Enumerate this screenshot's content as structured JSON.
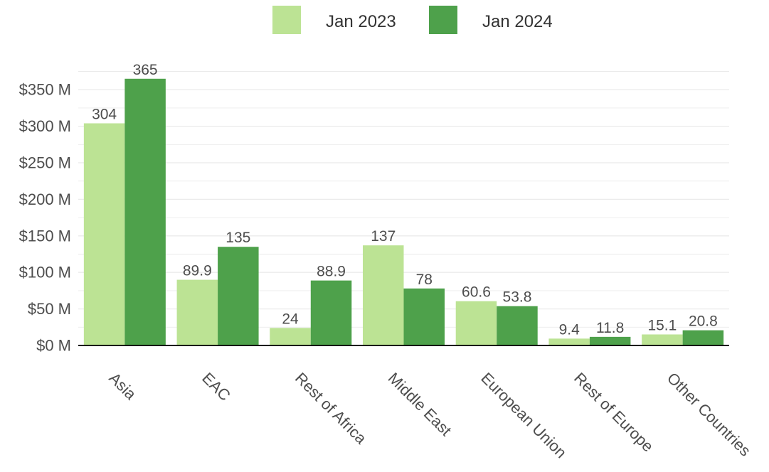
{
  "chart_data": {
    "type": "bar",
    "categories": [
      "Asia",
      "EAC",
      "Rest of Africa",
      "Middle East",
      "European Union",
      "Rest of Europe",
      "Other Countries"
    ],
    "series": [
      {
        "name": "Jan 2023",
        "values": [
          304,
          89.9,
          24,
          137,
          60.6,
          9.4,
          15.1
        ],
        "labels": [
          "304",
          "89.9",
          "24",
          "137",
          "60.6",
          "9.4",
          "15.1"
        ],
        "color": "#bce394"
      },
      {
        "name": "Jan 2024",
        "values": [
          365,
          135,
          88.9,
          78,
          53.8,
          11.8,
          20.8
        ],
        "labels": [
          "365",
          "135",
          "88.9",
          "78",
          "53.8",
          "11.8",
          "20.8"
        ],
        "color": "#4ea14b"
      }
    ],
    "yticks": [
      0,
      50,
      100,
      150,
      200,
      250,
      300,
      350
    ],
    "ytick_labels": [
      "$0 M",
      "$50 M",
      "$100 M",
      "$150 M",
      "$200 M",
      "$250 M",
      "$300 M",
      "$350 M"
    ],
    "ylim": [
      0,
      375
    ],
    "grid": true,
    "legend_position": "top-center",
    "title": "",
    "xlabel": "",
    "ylabel": ""
  }
}
